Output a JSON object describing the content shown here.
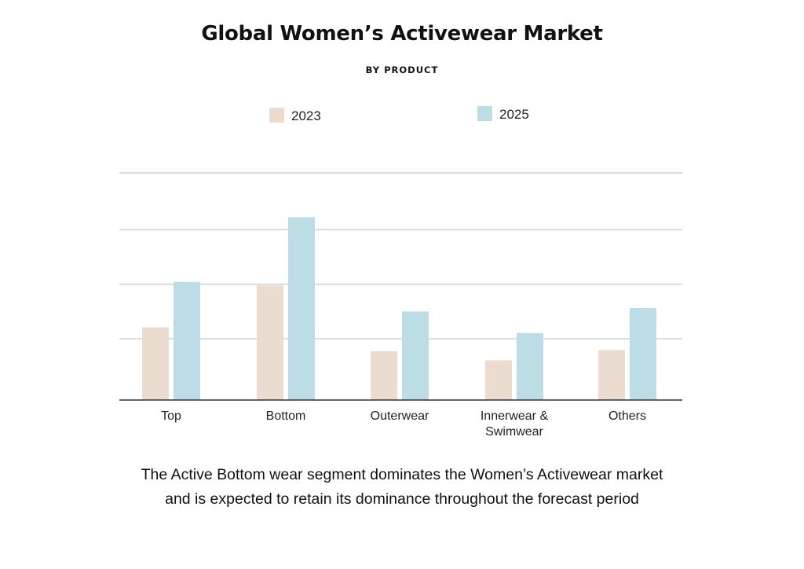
{
  "chart_data": {
    "type": "bar",
    "title": "Global Women’s Activewear Market",
    "subtitle": "BY PRODUCT",
    "categories": [
      [
        "Top"
      ],
      [
        "Bottom"
      ],
      [
        "Outerwear"
      ],
      [
        "Innerwear &",
        "Swimwear"
      ],
      [
        "Others"
      ]
    ],
    "series": [
      {
        "name": "2023",
        "color": "#ecdcd0",
        "values": [
          32,
          50.5,
          21.5,
          17.5,
          22
        ]
      },
      {
        "name": "2025",
        "color": "#bddde6",
        "values": [
          52,
          80.5,
          39,
          29.5,
          40.5
        ]
      }
    ],
    "ylim": [
      0,
      100
    ],
    "yticks_gridlines": [
      27,
      51,
      75,
      100
    ],
    "xlabel": "",
    "ylabel": "",
    "grid": true,
    "legend_position": "top"
  },
  "caption": {
    "line1": "The Active Bottom wear segment dominates the Women’s Activewear market",
    "line2": "and is expected to retain its dominance throughout the forecast period"
  }
}
